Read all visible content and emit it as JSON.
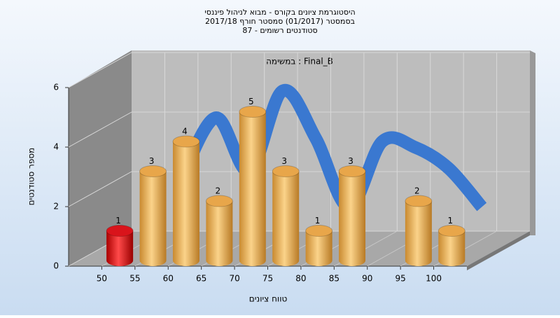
{
  "chart_data": {
    "type": "histogram",
    "title": [
      "היסטוגרמת ציונים בקורס - מבוא לניהול פיננסי",
      "בסמסטר  (01/2017)  סמסטר חורף 2017/18",
      "סטודנטים רשומים - 87"
    ],
    "annotation": "במשימה : Final_B",
    "x_label": "טווח ציונים",
    "y_label": "מספר סטודנטים",
    "bins": [
      50,
      55,
      60,
      65,
      70,
      75,
      80,
      85,
      90,
      95,
      100,
      105
    ],
    "values": [
      1,
      3,
      4,
      2,
      5,
      3,
      1,
      3,
      0,
      2,
      1
    ],
    "colors": [
      "#d9141b",
      "#e8a64a",
      "#e8a64a",
      "#e8a64a",
      "#e8a64a",
      "#e8a64a",
      "#e8a64a",
      "#e8a64a",
      "#e8a64a",
      "#e8a64a",
      "#e8a64a"
    ],
    "curve": {
      "color": "#3a78d0",
      "x": [
        57.5,
        62.5,
        67.5,
        72.5,
        77.5,
        82.5,
        87.5,
        92.5,
        97.5,
        102.5
      ],
      "values": [
        2.5,
        4.4,
        2.6,
        5.3,
        3.7,
        1.4,
        3.6,
        3.4,
        2.7,
        1.4
      ]
    },
    "xlim": [
      45,
      105
    ],
    "xticks": [
      50,
      55,
      60,
      65,
      70,
      75,
      80,
      85,
      90,
      95,
      100
    ],
    "ylim": [
      0,
      6
    ],
    "yticks": [
      0,
      2,
      4,
      6
    ],
    "grid": true
  }
}
